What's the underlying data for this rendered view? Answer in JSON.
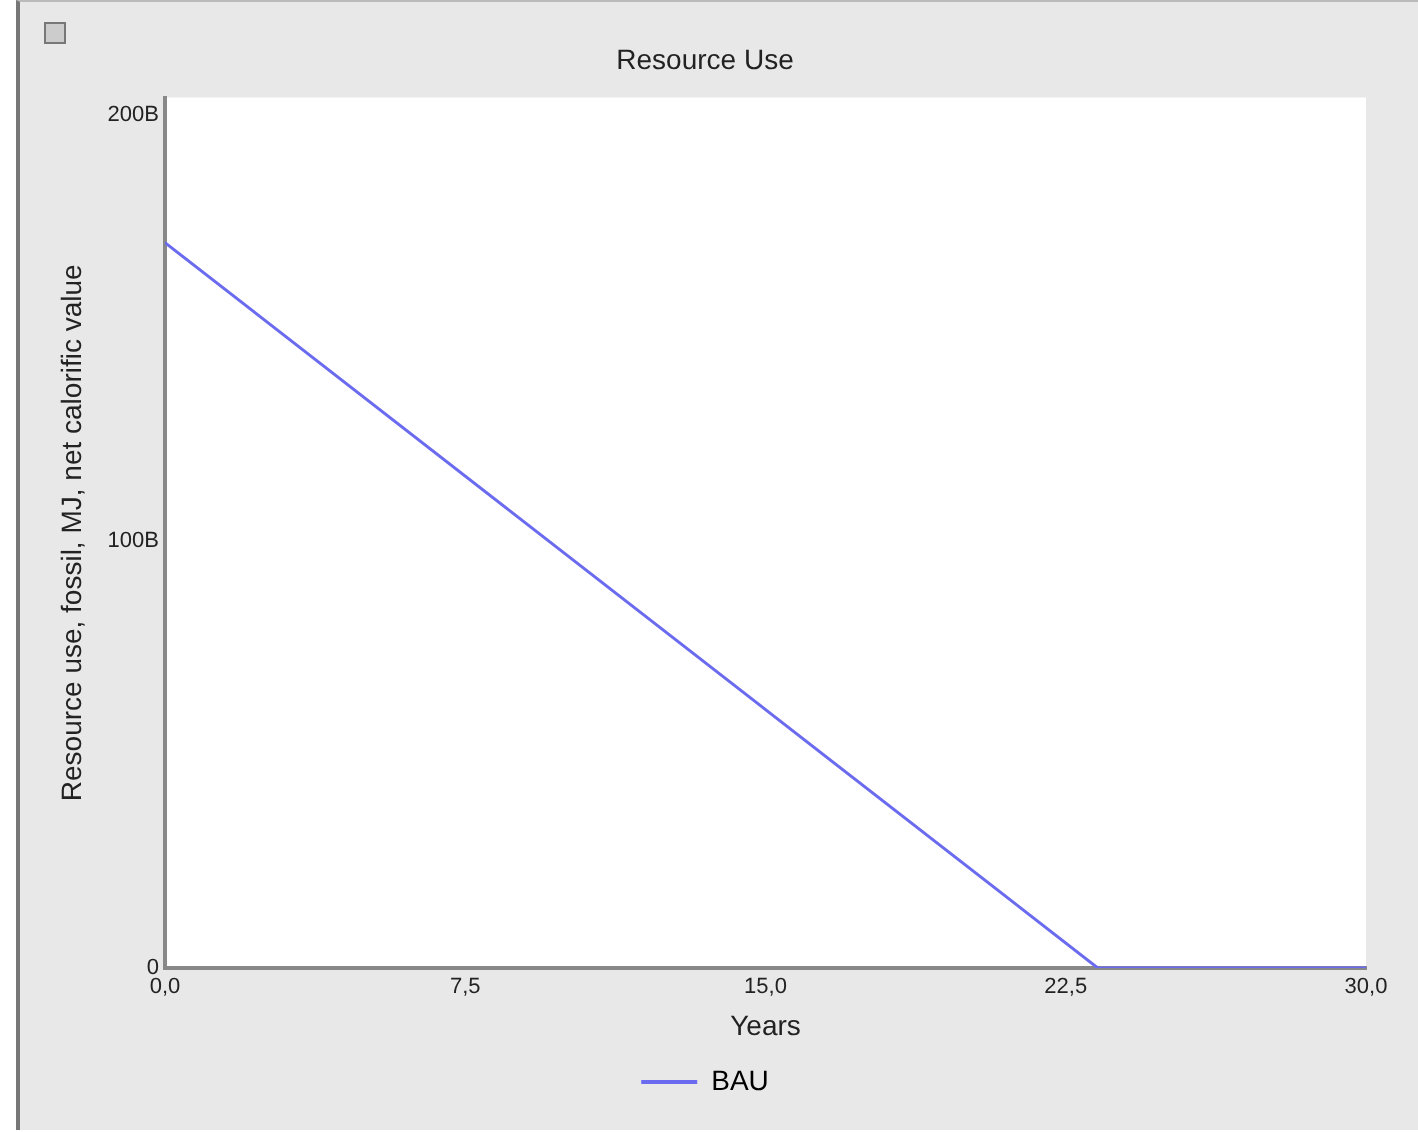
{
  "chart_data": {
    "type": "line",
    "title": "Resource Use",
    "xlabel": "Years",
    "ylabel": "Resource use, fossil, MJ, net calorific value",
    "series": [
      {
        "name": "BAU",
        "color": "#6b6bf0",
        "x": [
          0,
          23.3,
          30
        ],
        "values": [
          170,
          0,
          0
        ]
      }
    ],
    "xlim": [
      0,
      30
    ],
    "xticks": [
      {
        "value": 0,
        "label": "0,0"
      },
      {
        "value": 7.5,
        "label": "7,5"
      },
      {
        "value": 15,
        "label": "15,0"
      },
      {
        "value": 22.5,
        "label": "22,5"
      },
      {
        "value": 30,
        "label": "30,0"
      }
    ],
    "ylim": [
      0,
      204
    ],
    "yticks": [
      0,
      {
        "value": 100,
        "label": "100B"
      },
      {
        "value": 200,
        "label": "200B"
      }
    ],
    "grid": false,
    "legend": "bottom",
    "marker": "none",
    "line_style": "solid"
  }
}
